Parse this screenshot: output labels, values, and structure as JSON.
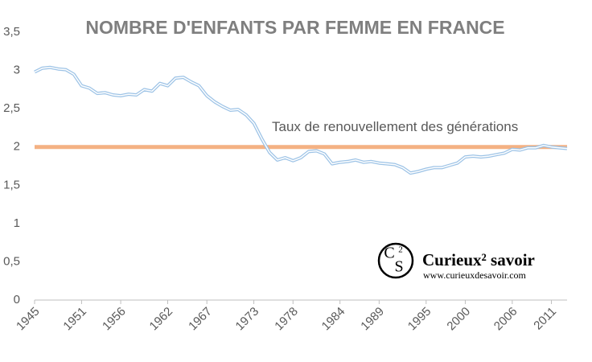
{
  "chart_data": {
    "type": "line",
    "title": "NOMBRE D'ENFANTS PAR FEMME EN FRANCE",
    "x": [
      1945,
      1946,
      1947,
      1948,
      1949,
      1950,
      1951,
      1952,
      1953,
      1954,
      1955,
      1956,
      1957,
      1958,
      1959,
      1960,
      1961,
      1962,
      1963,
      1964,
      1965,
      1966,
      1967,
      1968,
      1969,
      1970,
      1971,
      1972,
      1973,
      1974,
      1975,
      1976,
      1977,
      1978,
      1979,
      1980,
      1981,
      1982,
      1983,
      1984,
      1985,
      1986,
      1987,
      1988,
      1989,
      1990,
      1991,
      1992,
      1993,
      1994,
      1995,
      1996,
      1997,
      1998,
      1999,
      2000,
      2001,
      2002,
      2003,
      2004,
      2005,
      2006,
      2007,
      2008,
      2009,
      2010,
      2011,
      2012,
      2013
    ],
    "series": [
      {
        "color": "#9dc3e6",
        "values": [
          2.98,
          3.03,
          3.04,
          3.02,
          3.01,
          2.95,
          2.8,
          2.77,
          2.7,
          2.71,
          2.68,
          2.67,
          2.69,
          2.68,
          2.75,
          2.73,
          2.83,
          2.8,
          2.9,
          2.91,
          2.85,
          2.8,
          2.67,
          2.59,
          2.53,
          2.48,
          2.49,
          2.42,
          2.31,
          2.11,
          1.93,
          1.83,
          1.86,
          1.82,
          1.86,
          1.94,
          1.95,
          1.91,
          1.78,
          1.8,
          1.81,
          1.83,
          1.8,
          1.81,
          1.79,
          1.78,
          1.77,
          1.73,
          1.66,
          1.68,
          1.71,
          1.73,
          1.73,
          1.76,
          1.79,
          1.87,
          1.88,
          1.87,
          1.88,
          1.9,
          1.92,
          1.97,
          1.96,
          1.99,
          1.99,
          2.02,
          2.0,
          1.99,
          1.98
        ]
      }
    ],
    "xlim": [
      1945,
      2013
    ],
    "xticks": [
      1945,
      1951,
      1956,
      1962,
      1967,
      1973,
      1978,
      1984,
      1989,
      1995,
      2000,
      2006,
      2011
    ],
    "ylim": [
      0,
      3.5
    ],
    "yticks": [
      0,
      {
        "value": 0.5,
        "label": "0,5"
      },
      1,
      {
        "value": 1.5,
        "label": "1,5"
      },
      2,
      {
        "value": 2.5,
        "label": "2,5"
      },
      3,
      {
        "value": 3.5,
        "label": "3,5"
      }
    ],
    "grid": false,
    "reference_line": {
      "value": 2,
      "label": "Taux de renouvellement  des générations",
      "color": "#f4b183"
    },
    "watermark": {
      "logo": [
        "C",
        "2",
        "S"
      ],
      "name": "Curieux² savoir",
      "url": "www.curieuxdesavoir.com"
    }
  }
}
